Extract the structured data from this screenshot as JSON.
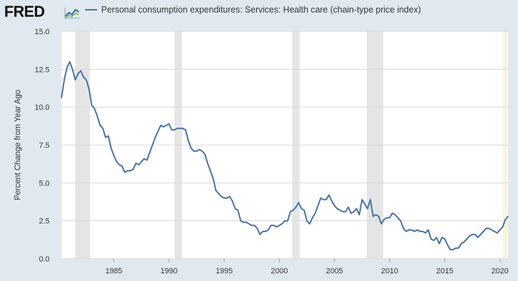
{
  "brand": {
    "logo_text": "FRED",
    "logo_icon": "line-chart-icon"
  },
  "legend": {
    "color": "#4572a7",
    "label": "Personal consumption expenditures: Services: Health care (chain-type price index)"
  },
  "chart_data": {
    "type": "line",
    "title": "",
    "xlabel": "",
    "ylabel": "Percent Change from Year Ago",
    "xlim": [
      1980.25,
      2020.75
    ],
    "ylim": [
      0,
      15
    ],
    "xticks": [
      1985,
      1990,
      1995,
      2000,
      2005,
      2010,
      2015,
      2020
    ],
    "xtick_labels": [
      "1985",
      "1990",
      "1995",
      "2000",
      "2005",
      "2010",
      "2015",
      "2020"
    ],
    "yticks": [
      0,
      2.5,
      5,
      7.5,
      10,
      12.5,
      15
    ],
    "ytick_labels": [
      "0.0",
      "2.5",
      "5.0",
      "7.5",
      "10.0",
      "12.5",
      "15.0"
    ],
    "grid": "horizontal",
    "line_color": "#4572a7",
    "recession_color": "#e5e5e5",
    "covid_shade_color": "#faf6dc",
    "recessions": [
      [
        1981.5,
        1982.83
      ],
      [
        1990.5,
        1991.17
      ],
      [
        2001.17,
        2001.83
      ],
      [
        2007.92,
        2009.42
      ]
    ],
    "highlight_period": [
      2020.25,
      2020.75
    ],
    "series": [
      {
        "name": "Personal consumption expenditures: Services: Health care (chain-type price index)",
        "points": [
          [
            1980.25,
            10.6
          ],
          [
            1980.5,
            11.8
          ],
          [
            1980.75,
            12.6
          ],
          [
            1981.0,
            13.0
          ],
          [
            1981.25,
            12.5
          ],
          [
            1981.5,
            11.8
          ],
          [
            1981.75,
            12.2
          ],
          [
            1982.0,
            12.4
          ],
          [
            1982.25,
            12.0
          ],
          [
            1982.5,
            11.8
          ],
          [
            1982.75,
            11.2
          ],
          [
            1983.0,
            10.1
          ],
          [
            1983.25,
            9.9
          ],
          [
            1983.5,
            9.4
          ],
          [
            1983.75,
            8.8
          ],
          [
            1984.0,
            8.6
          ],
          [
            1984.25,
            8.0
          ],
          [
            1984.5,
            8.1
          ],
          [
            1984.75,
            7.3
          ],
          [
            1985.0,
            6.8
          ],
          [
            1985.25,
            6.4
          ],
          [
            1985.5,
            6.2
          ],
          [
            1985.75,
            6.1
          ],
          [
            1986.0,
            5.7
          ],
          [
            1986.25,
            5.8
          ],
          [
            1986.5,
            5.8
          ],
          [
            1986.75,
            5.9
          ],
          [
            1987.0,
            6.3
          ],
          [
            1987.25,
            6.2
          ],
          [
            1987.5,
            6.4
          ],
          [
            1987.75,
            6.6
          ],
          [
            1988.0,
            6.5
          ],
          [
            1988.25,
            7.0
          ],
          [
            1988.5,
            7.5
          ],
          [
            1988.75,
            8.0
          ],
          [
            1989.0,
            8.4
          ],
          [
            1989.25,
            8.8
          ],
          [
            1989.5,
            8.7
          ],
          [
            1989.75,
            8.8
          ],
          [
            1990.0,
            8.9
          ],
          [
            1990.25,
            8.5
          ],
          [
            1990.5,
            8.5
          ],
          [
            1990.75,
            8.6
          ],
          [
            1991.0,
            8.6
          ],
          [
            1991.25,
            8.6
          ],
          [
            1991.5,
            8.5
          ],
          [
            1991.75,
            7.8
          ],
          [
            1992.0,
            7.3
          ],
          [
            1992.25,
            7.1
          ],
          [
            1992.5,
            7.1
          ],
          [
            1992.75,
            7.2
          ],
          [
            1993.0,
            7.1
          ],
          [
            1993.25,
            6.9
          ],
          [
            1993.5,
            6.3
          ],
          [
            1993.75,
            5.8
          ],
          [
            1994.0,
            5.3
          ],
          [
            1994.25,
            4.5
          ],
          [
            1994.5,
            4.3
          ],
          [
            1994.75,
            4.1
          ],
          [
            1995.0,
            4.0
          ],
          [
            1995.25,
            4.0
          ],
          [
            1995.5,
            4.1
          ],
          [
            1995.75,
            3.8
          ],
          [
            1996.0,
            3.3
          ],
          [
            1996.25,
            3.2
          ],
          [
            1996.5,
            2.5
          ],
          [
            1996.75,
            2.4
          ],
          [
            1997.0,
            2.4
          ],
          [
            1997.25,
            2.3
          ],
          [
            1997.5,
            2.2
          ],
          [
            1997.75,
            2.2
          ],
          [
            1998.0,
            2.0
          ],
          [
            1998.25,
            1.6
          ],
          [
            1998.5,
            1.8
          ],
          [
            1998.75,
            1.8
          ],
          [
            1999.0,
            1.9
          ],
          [
            1999.25,
            2.2
          ],
          [
            1999.5,
            2.2
          ],
          [
            1999.75,
            2.1
          ],
          [
            2000.0,
            2.2
          ],
          [
            2000.25,
            2.3
          ],
          [
            2000.5,
            2.5
          ],
          [
            2000.75,
            2.5
          ],
          [
            2001.0,
            3.1
          ],
          [
            2001.25,
            3.2
          ],
          [
            2001.5,
            3.4
          ],
          [
            2001.75,
            3.7
          ],
          [
            2002.0,
            3.3
          ],
          [
            2002.25,
            3.2
          ],
          [
            2002.5,
            2.5
          ],
          [
            2002.75,
            2.3
          ],
          [
            2003.0,
            2.7
          ],
          [
            2003.25,
            3.0
          ],
          [
            2003.5,
            3.5
          ],
          [
            2003.75,
            4.0
          ],
          [
            2004.0,
            3.9
          ],
          [
            2004.25,
            3.9
          ],
          [
            2004.5,
            4.2
          ],
          [
            2004.75,
            3.8
          ],
          [
            2005.0,
            3.5
          ],
          [
            2005.25,
            3.3
          ],
          [
            2005.5,
            3.2
          ],
          [
            2005.75,
            3.1
          ],
          [
            2006.0,
            3.1
          ],
          [
            2006.25,
            3.4
          ],
          [
            2006.5,
            3.0
          ],
          [
            2006.75,
            3.1
          ],
          [
            2007.0,
            3.3
          ],
          [
            2007.25,
            2.9
          ],
          [
            2007.5,
            3.9
          ],
          [
            2007.75,
            3.6
          ],
          [
            2008.0,
            3.3
          ],
          [
            2008.25,
            3.9
          ],
          [
            2008.5,
            2.8
          ],
          [
            2008.75,
            2.9
          ],
          [
            2009.0,
            2.8
          ],
          [
            2009.25,
            2.3
          ],
          [
            2009.5,
            2.6
          ],
          [
            2009.75,
            2.7
          ],
          [
            2010.0,
            2.7
          ],
          [
            2010.25,
            3.0
          ],
          [
            2010.5,
            2.9
          ],
          [
            2010.75,
            2.7
          ],
          [
            2011.0,
            2.5
          ],
          [
            2011.25,
            2.0
          ],
          [
            2011.5,
            1.8
          ],
          [
            2011.75,
            1.9
          ],
          [
            2012.0,
            1.9
          ],
          [
            2012.25,
            1.8
          ],
          [
            2012.5,
            1.9
          ],
          [
            2012.75,
            1.8
          ],
          [
            2013.0,
            1.8
          ],
          [
            2013.25,
            1.7
          ],
          [
            2013.5,
            1.9
          ],
          [
            2013.75,
            1.3
          ],
          [
            2014.0,
            1.2
          ],
          [
            2014.25,
            1.4
          ],
          [
            2014.5,
            1.0
          ],
          [
            2014.75,
            1.4
          ],
          [
            2015.0,
            1.3
          ],
          [
            2015.25,
            0.9
          ],
          [
            2015.5,
            0.6
          ],
          [
            2015.75,
            0.6
          ],
          [
            2016.0,
            0.7
          ],
          [
            2016.25,
            0.7
          ],
          [
            2016.5,
            1.0
          ],
          [
            2016.75,
            1.1
          ],
          [
            2017.0,
            1.3
          ],
          [
            2017.25,
            1.5
          ],
          [
            2017.5,
            1.6
          ],
          [
            2017.75,
            1.6
          ],
          [
            2018.0,
            1.4
          ],
          [
            2018.25,
            1.6
          ],
          [
            2018.5,
            1.8
          ],
          [
            2018.75,
            2.0
          ],
          [
            2019.0,
            2.0
          ],
          [
            2019.25,
            1.9
          ],
          [
            2019.5,
            1.8
          ],
          [
            2019.75,
            1.7
          ],
          [
            2020.0,
            1.9
          ],
          [
            2020.25,
            2.1
          ],
          [
            2020.5,
            2.6
          ],
          [
            2020.75,
            2.8
          ]
        ]
      }
    ]
  }
}
